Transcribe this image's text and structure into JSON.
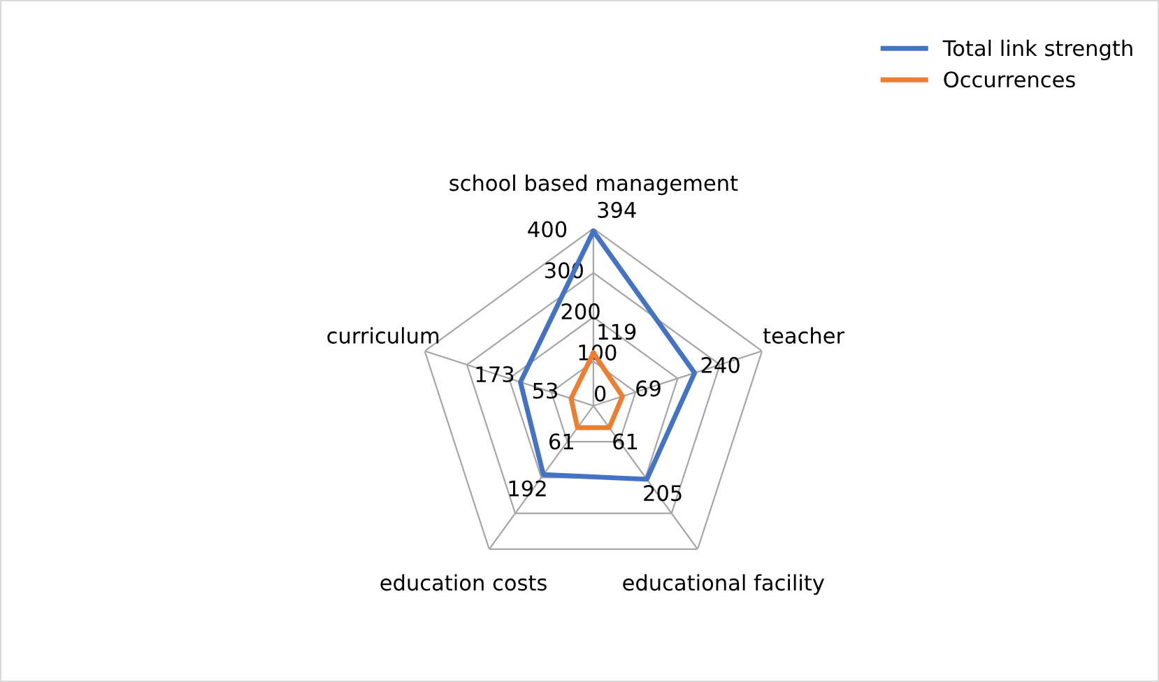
{
  "chart_data": {
    "type": "radar",
    "categories": [
      "school based management",
      "teacher",
      "educational facility",
      "education costs",
      "curriculum"
    ],
    "series": [
      {
        "name": "Total link strength",
        "color": "#4472c4",
        "values": [
          394,
          240,
          205,
          192,
          173
        ]
      },
      {
        "name": "Occurrences",
        "color": "#ed7d31",
        "values": [
          119,
          69,
          61,
          61,
          53
        ]
      }
    ],
    "ylim": [
      0,
      400
    ],
    "yticks": [
      0,
      100,
      200,
      300,
      400
    ],
    "grid": true,
    "legend": "top right",
    "data_labels": true,
    "marker": "none",
    "line_style": "solid"
  }
}
